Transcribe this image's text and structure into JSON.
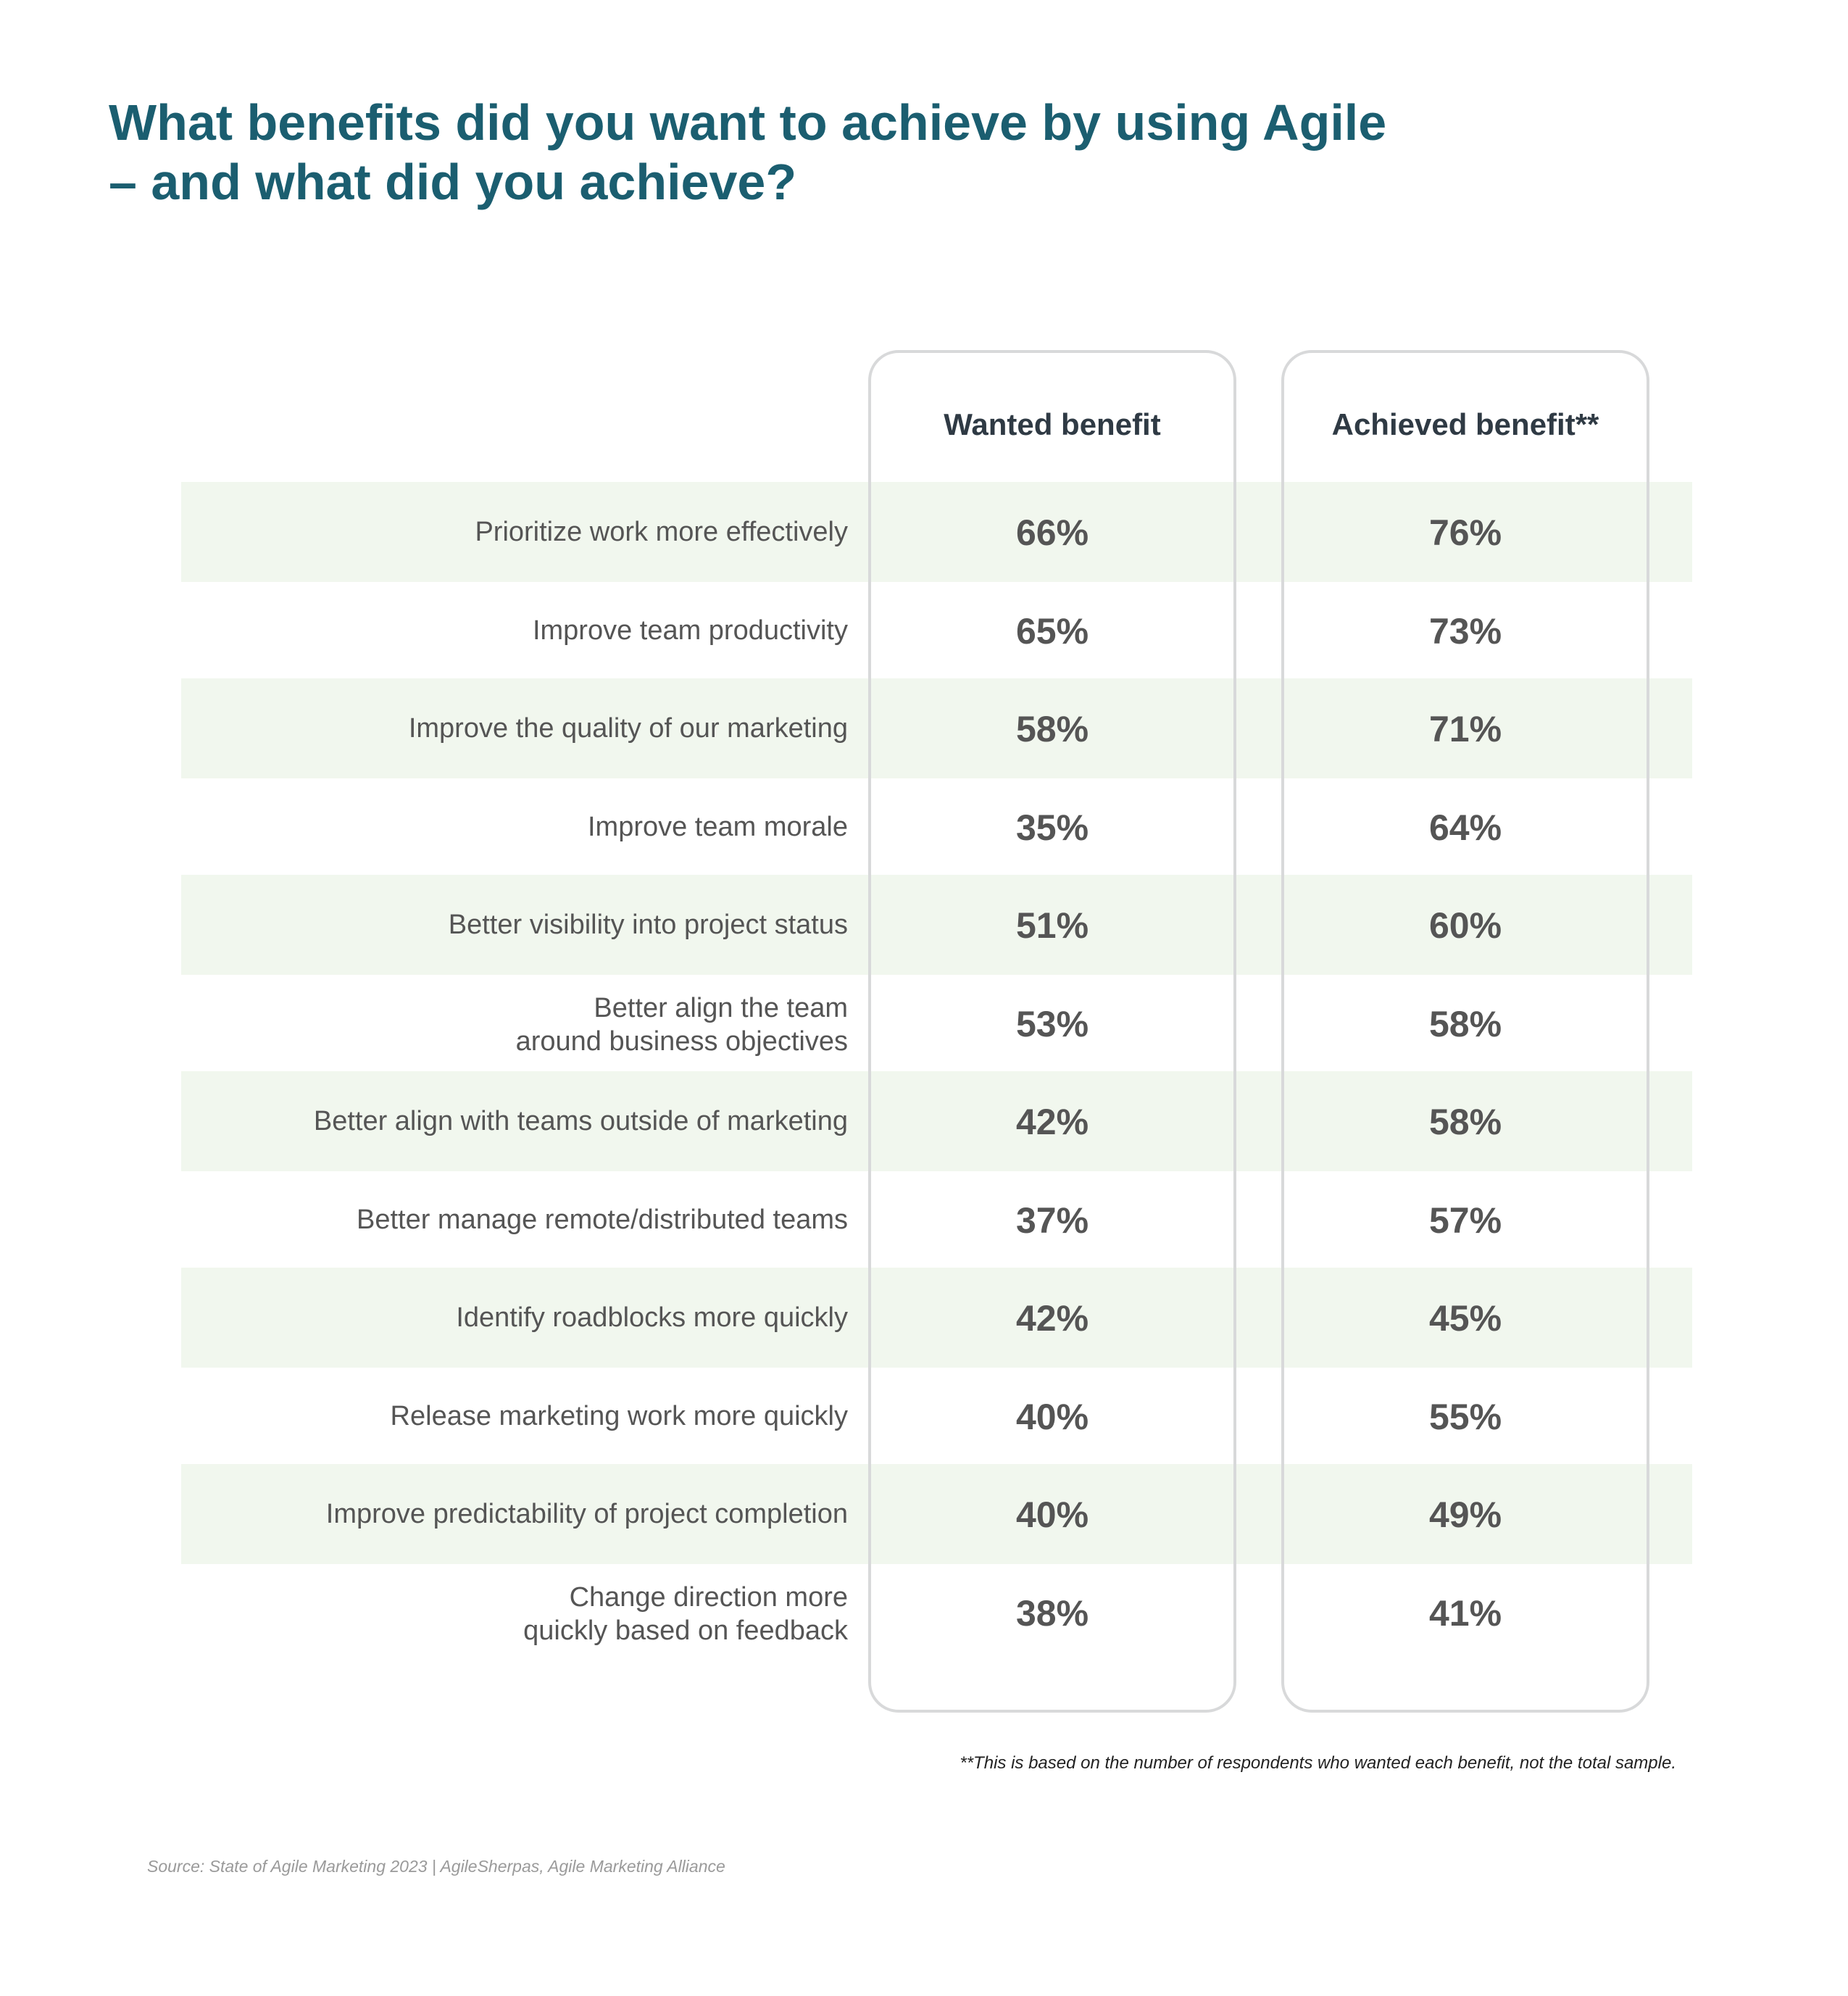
{
  "title_lines": [
    "What benefits did you want to achieve by using Agile",
    "– and what did you achieve?"
  ],
  "footnote": "**This is based on the number of respondents who wanted each benefit, not the total sample.",
  "source": "Source: State of Agile Marketing 2023 | AgileSherpas, Agile Marketing Alliance",
  "chart_data": {
    "type": "table",
    "columns": [
      "Wanted benefit",
      "Achieved benefit**"
    ],
    "rows": [
      {
        "label": "Prioritize work more effectively",
        "wanted": "66%",
        "achieved": "76%"
      },
      {
        "label": "Improve team productivity",
        "wanted": "65%",
        "achieved": "73%"
      },
      {
        "label": "Improve the quality of our marketing",
        "wanted": "58%",
        "achieved": "71%"
      },
      {
        "label": "Improve team morale",
        "wanted": "35%",
        "achieved": "64%"
      },
      {
        "label": "Better visibility into project status",
        "wanted": "51%",
        "achieved": "60%"
      },
      {
        "label": "Better align the team\naround business objectives",
        "wanted": "53%",
        "achieved": "58%"
      },
      {
        "label": "Better align with teams outside of marketing",
        "wanted": "42%",
        "achieved": "58%"
      },
      {
        "label": "Better manage remote/distributed teams",
        "wanted": "37%",
        "achieved": "57%"
      },
      {
        "label": "Identify roadblocks more quickly",
        "wanted": "42%",
        "achieved": "45%"
      },
      {
        "label": "Release marketing work more quickly",
        "wanted": "40%",
        "achieved": "55%"
      },
      {
        "label": "Improve predictability of project completion",
        "wanted": "40%",
        "achieved": "49%"
      },
      {
        "label": "Change direction more\nquickly based on feedback",
        "wanted": "38%",
        "achieved": "41%"
      }
    ]
  }
}
